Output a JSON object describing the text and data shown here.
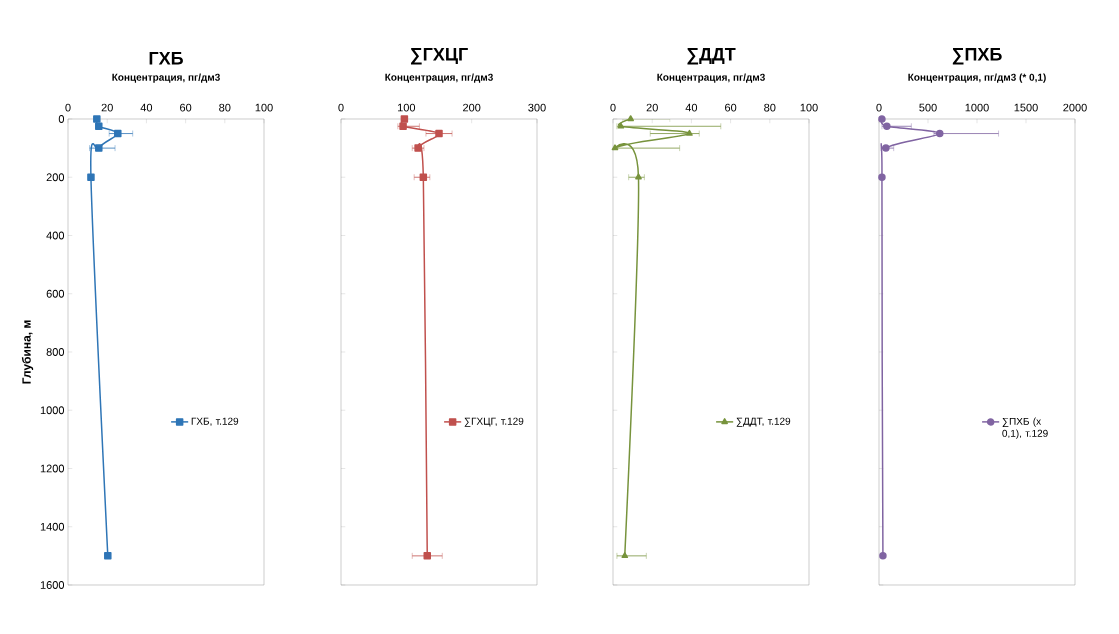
{
  "chart_data": [
    {
      "type": "line",
      "title": "ГХБ",
      "xlabel": "Концентрация, пг/дм3",
      "ylabel": "Глубина, м",
      "xlim": [
        0,
        100
      ],
      "xticks": [
        0,
        20,
        40,
        60,
        80,
        100
      ],
      "ylim": [
        1600,
        0
      ],
      "yticks": [
        0,
        200,
        400,
        600,
        800,
        1000,
        1200,
        1400,
        1600
      ],
      "legend": "right",
      "marker": "square",
      "series": [
        {
          "name": "ГХБ, т.129",
          "color": "#2e75b6",
          "x": [
            14.7,
            15.7,
            25.4,
            15.7,
            11.7,
            20.3
          ],
          "values": [
            0,
            25,
            50,
            100,
            200,
            1500
          ],
          "xerrors": [
            null,
            null,
            [
              21,
              33
            ],
            [
              11,
              24
            ],
            null,
            null
          ]
        }
      ]
    },
    {
      "type": "line",
      "title": "∑ГХЦГ",
      "xlabel": "Концентрация, пг/дм3",
      "xlim": [
        0,
        300
      ],
      "xticks": [
        0,
        100,
        200,
        300
      ],
      "ylim": [
        1600,
        0
      ],
      "yticks": [
        0,
        200,
        400,
        600,
        800,
        1000,
        1200,
        1400,
        1600
      ],
      "tick_labels": "x",
      "legend": "right",
      "marker": "square",
      "series": [
        {
          "name": "∑ГХЦГ, т.129",
          "color": "#c0504d",
          "x": [
            97,
            95,
            150,
            118,
            126,
            132
          ],
          "values": [
            0,
            25,
            50,
            100,
            200,
            1500
          ],
          "xerrors": [
            null,
            [
              87,
              120
            ],
            [
              130,
              170
            ],
            [
              109,
              127
            ],
            [
              112,
              136
            ],
            [
              109,
              155
            ]
          ]
        }
      ]
    },
    {
      "type": "line",
      "title": "∑ДДТ",
      "xlabel": "Концентрация, пг/дм3",
      "xlim": [
        0,
        100
      ],
      "xticks": [
        0,
        20,
        40,
        60,
        80,
        100
      ],
      "ylim": [
        1600,
        0
      ],
      "yticks": [
        0,
        200,
        400,
        600,
        800,
        1000,
        1200,
        1400,
        1600
      ],
      "tick_labels": "x",
      "legend": "right",
      "marker": "triangle",
      "series": [
        {
          "name": "∑ДДТ, т.129",
          "color": "#77933c",
          "x": [
            9,
            4,
            39,
            1,
            13,
            6
          ],
          "values": [
            0,
            25,
            50,
            100,
            200,
            1500
          ],
          "xerrors": [
            [
              5,
              29
            ],
            [
              2,
              55
            ],
            [
              19,
              44
            ],
            [
              0,
              34
            ],
            [
              8,
              16
            ],
            [
              2,
              17
            ]
          ]
        }
      ]
    },
    {
      "type": "line",
      "title": "∑ПХБ",
      "xlabel": "Концентрация, пг/дм3 (* 0,1)",
      "xlim": [
        0,
        2000
      ],
      "xticks": [
        0,
        500,
        1000,
        1500,
        2000
      ],
      "ylim": [
        1600,
        0
      ],
      "yticks": [
        0,
        200,
        400,
        600,
        800,
        1000,
        1200,
        1400,
        1600
      ],
      "tick_labels": "x",
      "legend": "right",
      "marker": "circle",
      "series": [
        {
          "name": "∑ПХБ (x 0,1), т.129",
          "color": "#8064a2",
          "x": [
            30,
            80,
            620,
            70,
            30,
            40
          ],
          "values": [
            0,
            25,
            50,
            100,
            200,
            1500
          ],
          "xerrors": [
            null,
            [
              30,
              330
            ],
            [
              560,
              1220
            ],
            [
              20,
              150
            ],
            null,
            null
          ]
        }
      ]
    }
  ]
}
